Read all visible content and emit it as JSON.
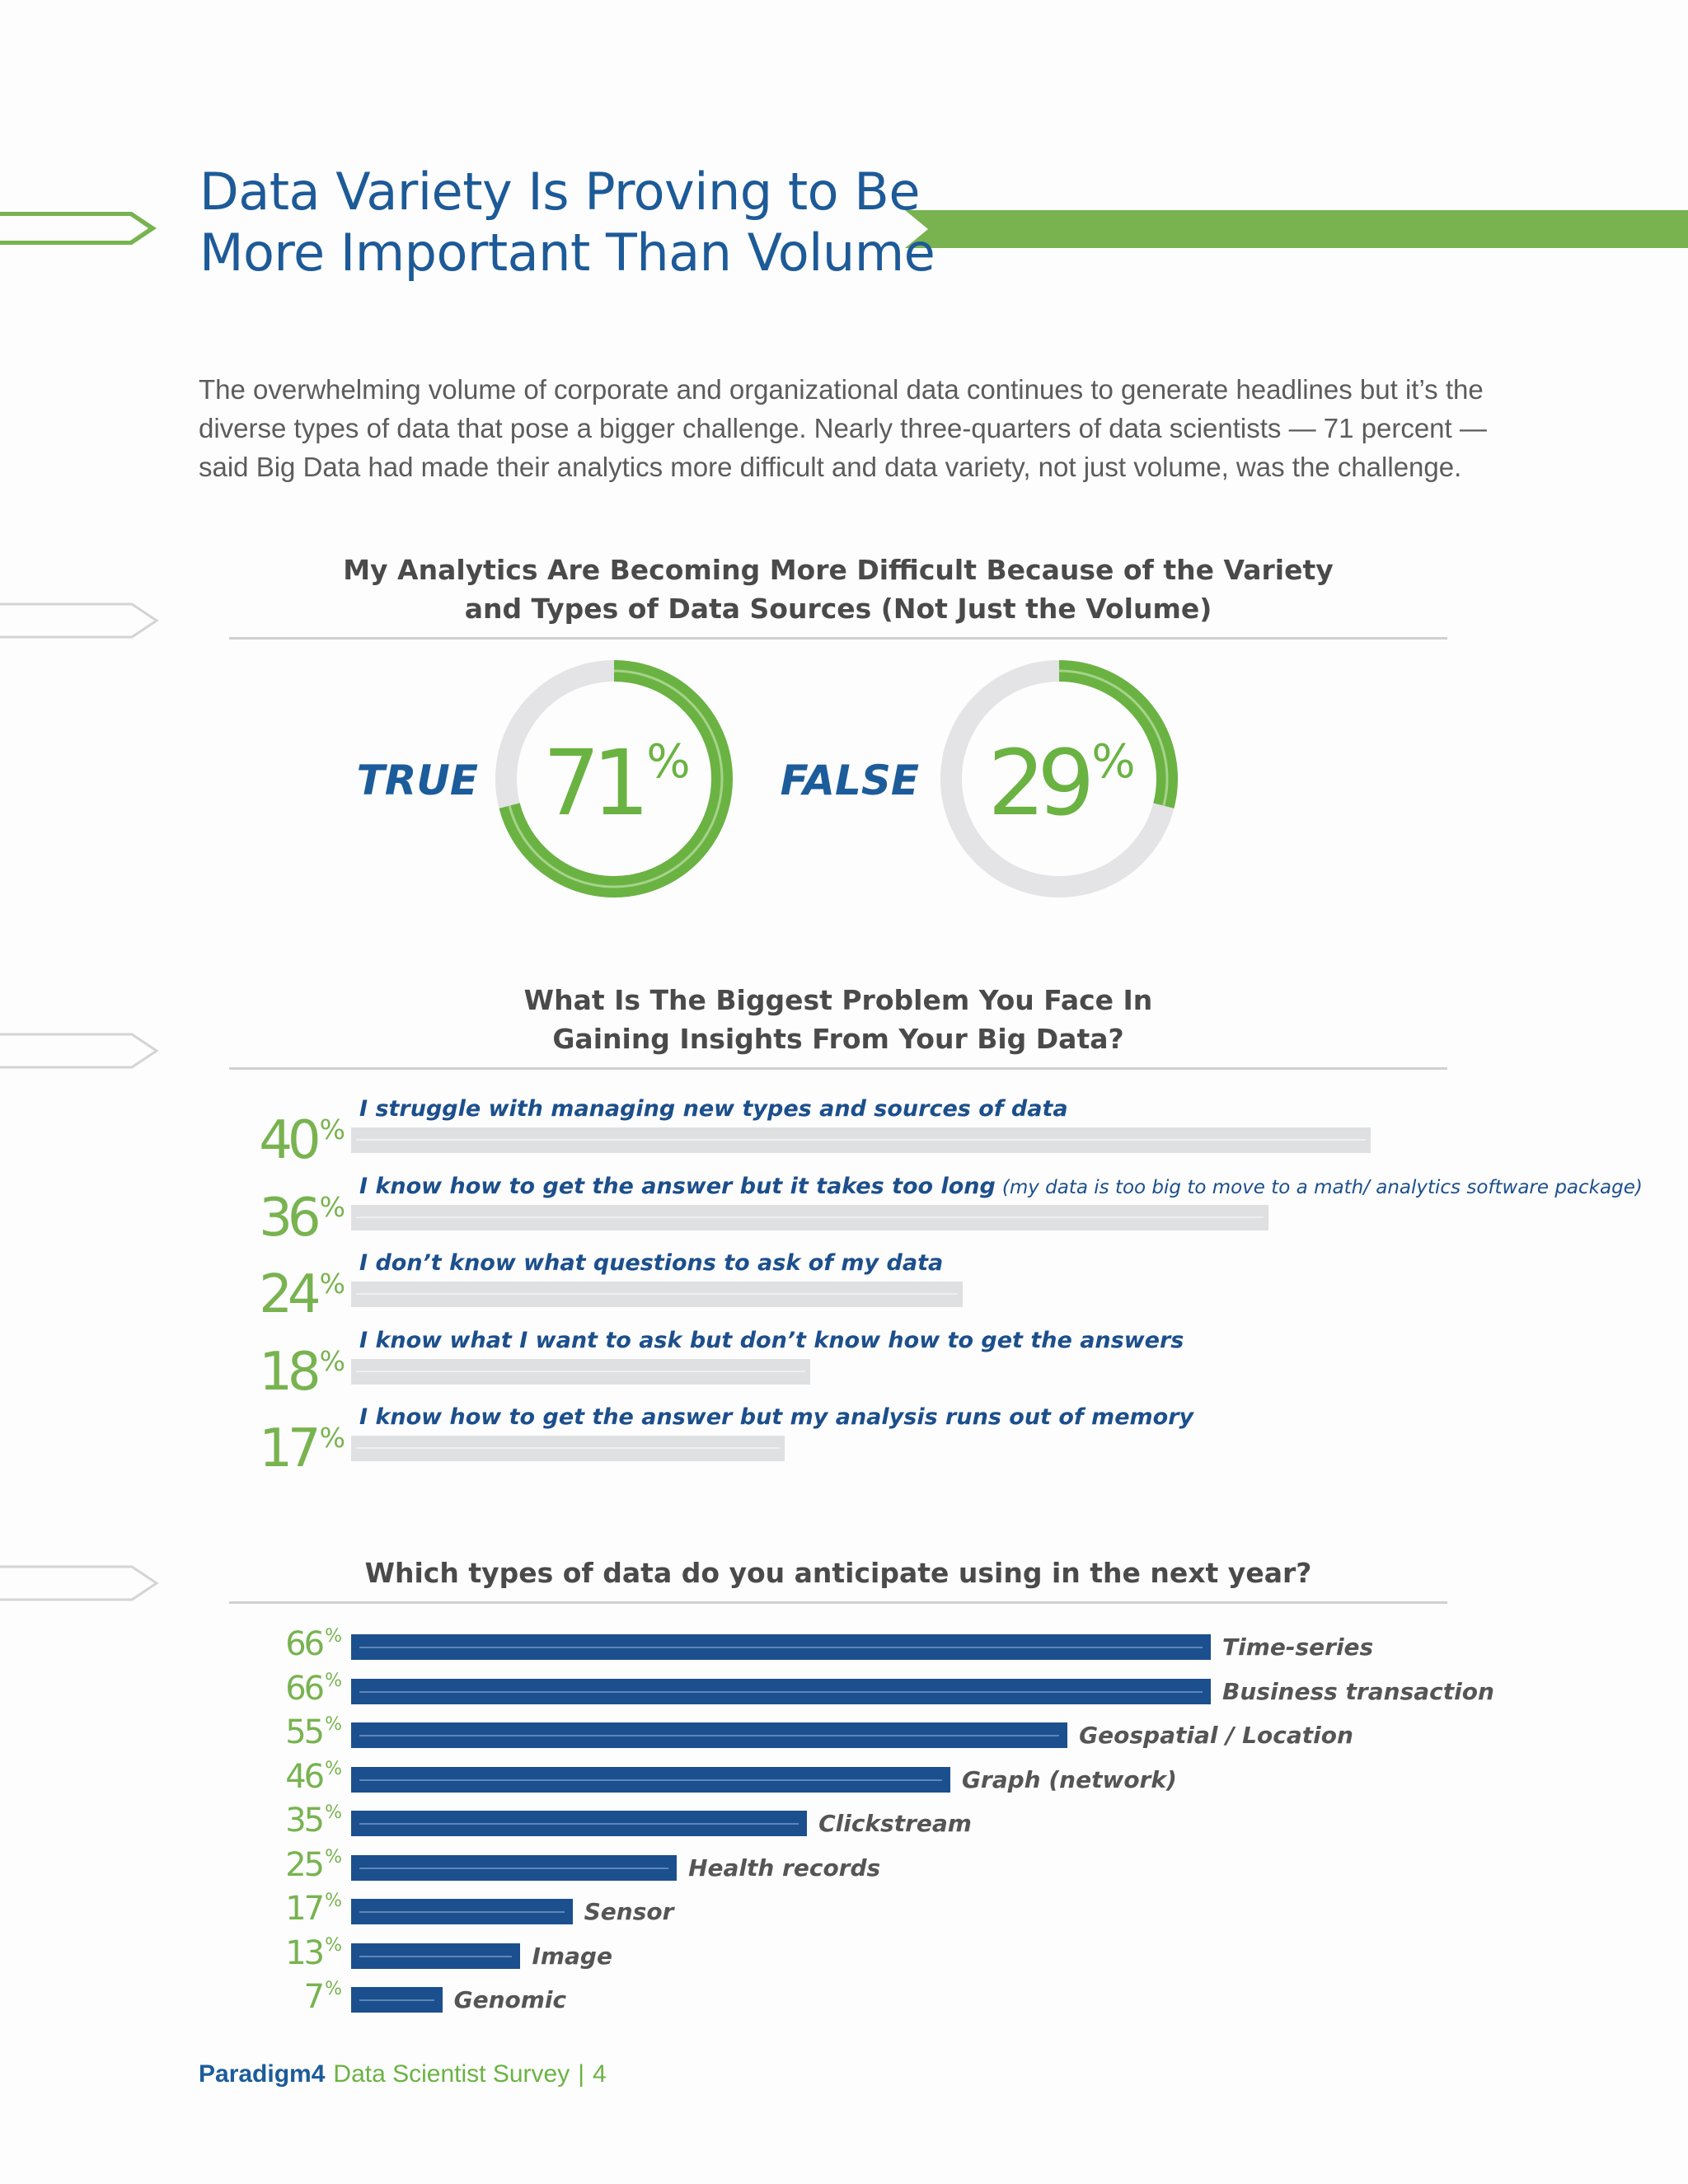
{
  "page": {
    "title_lines": [
      "Data Variety Is Proving to Be",
      "More Important Than Volume"
    ],
    "intro": "The overwhelming volume of corporate and organizational data continues to generate headlines but it’s the diverse types of data that pose a bigger challenge. Nearly three-quarters of data scientists — 71 percent — said Big Data had made their analytics more difficult and data variety, not just volume, was the challenge.",
    "accent_green": "#6ab343",
    "accent_blue": "#1c4f8e"
  },
  "chart_data": [
    {
      "type": "pie",
      "title_lines": [
        "My Analytics Are Becoming More Difficult Because of the Variety",
        "and Types of Data Sources (Not Just the Volume)"
      ],
      "items": [
        {
          "label": "TRUE",
          "value": 71,
          "value_text": "71",
          "unit": "%"
        },
        {
          "label": "FALSE",
          "value": 29,
          "value_text": "29",
          "unit": "%"
        }
      ]
    },
    {
      "type": "bar",
      "title_lines": [
        "What Is The Biggest Problem You Face In",
        "Gaining Insights From Your Big Data?"
      ],
      "unit": "%",
      "items": [
        {
          "value": 40,
          "value_text": "40",
          "label": "I struggle with managing new types and sources of data",
          "note": ""
        },
        {
          "value": 36,
          "value_text": "36",
          "label": "I know how to get the answer but it takes too long",
          "note": "(my data is too big to move to a math/ analytics software package)"
        },
        {
          "value": 24,
          "value_text": "24",
          "label": "I don’t know what questions to ask of my data",
          "note": ""
        },
        {
          "value": 18,
          "value_text": "18",
          "label": "I know what I want to ask but don’t know how to get the answers",
          "note": ""
        },
        {
          "value": 17,
          "value_text": "17",
          "label": "I know how to get the answer but my analysis runs out of memory",
          "note": ""
        }
      ]
    },
    {
      "type": "bar",
      "title_lines": [
        "Which types of data do you anticipate using in the next year?"
      ],
      "unit": "%",
      "items": [
        {
          "value": 66,
          "value_text": "66",
          "label": "Time-series"
        },
        {
          "value": 66,
          "value_text": "66",
          "label": "Business transaction"
        },
        {
          "value": 55,
          "value_text": "55",
          "label": "Geospatial / Location"
        },
        {
          "value": 46,
          "value_text": "46",
          "label": "Graph (network)"
        },
        {
          "value": 35,
          "value_text": "35",
          "label": "Clickstream"
        },
        {
          "value": 25,
          "value_text": "25",
          "label": "Health records"
        },
        {
          "value": 17,
          "value_text": "17",
          "label": "Sensor"
        },
        {
          "value": 13,
          "value_text": "13",
          "label": "Image"
        },
        {
          "value": 7,
          "value_text": "7",
          "label": "Genomic"
        }
      ]
    }
  ],
  "footer": {
    "brand": "Paradigm4",
    "subtitle": "Data Scientist Survey",
    "separator": "|",
    "page_number": "4"
  }
}
